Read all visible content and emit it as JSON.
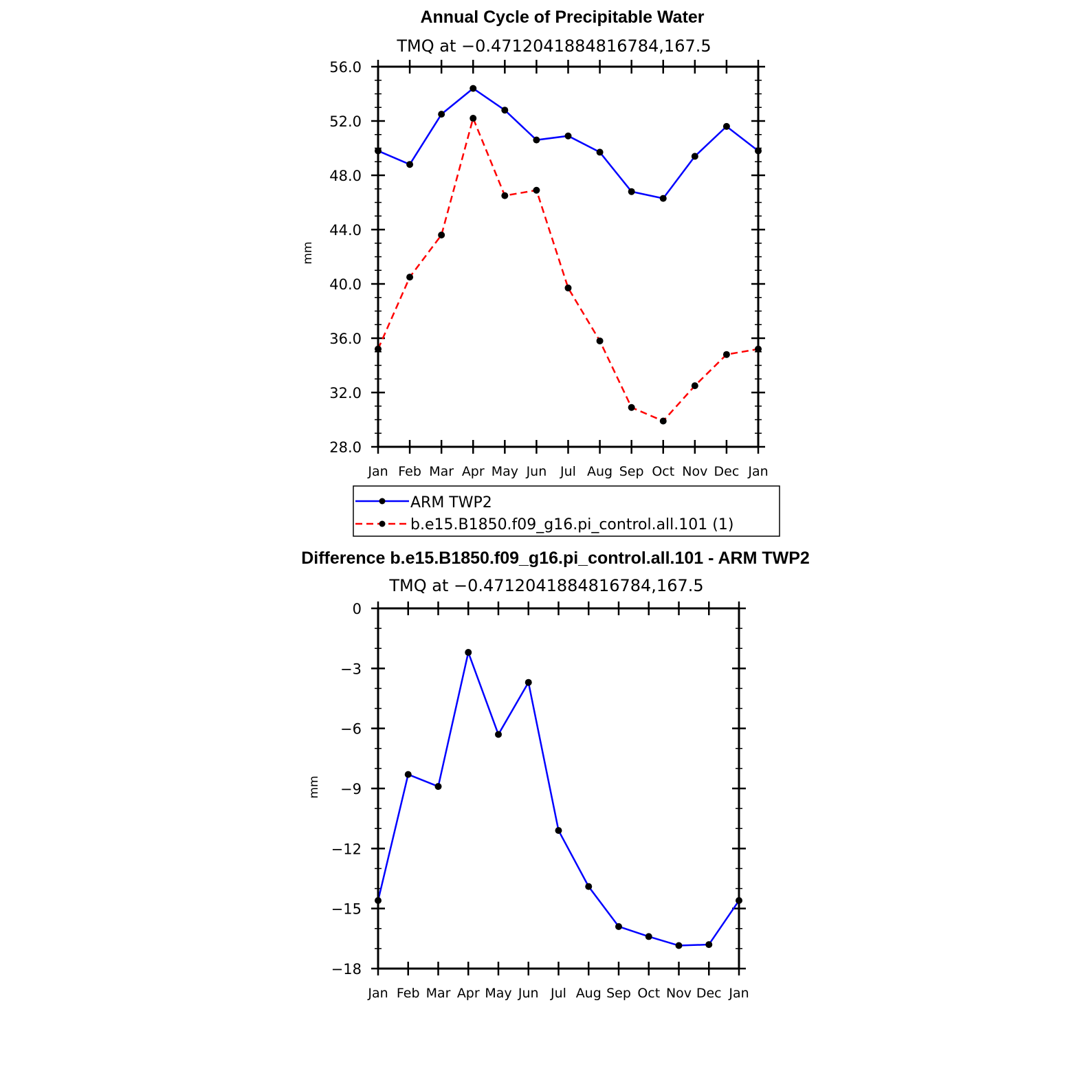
{
  "chart_data": [
    {
      "type": "line",
      "title": "Annual Cycle of Precipitable Water",
      "subtitle": "TMQ at −0.4712041884816784,167.5",
      "ylabel": "mm",
      "xlabel": "",
      "categories": [
        "Jan",
        "Feb",
        "Mar",
        "Apr",
        "May",
        "Jun",
        "Jul",
        "Aug",
        "Sep",
        "Oct",
        "Nov",
        "Dec",
        "Jan"
      ],
      "ylim": [
        28.0,
        56.0
      ],
      "yticks": [
        "28.0",
        "32.0",
        "36.0",
        "40.0",
        "44.0",
        "48.0",
        "52.0",
        "56.0"
      ],
      "ytick_values": [
        28,
        32,
        36,
        40,
        44,
        48,
        52,
        56
      ],
      "series": [
        {
          "name": "ARM TWP2",
          "color": "#0000ff",
          "style": "solid",
          "values": [
            49.8,
            48.8,
            52.5,
            54.4,
            52.8,
            50.6,
            50.9,
            49.7,
            46.8,
            46.3,
            49.4,
            51.6,
            49.8
          ]
        },
        {
          "name": "b.e15.B1850.f09_g16.pi_control.all.101 (1)",
          "color": "#ff0000",
          "style": "dashed",
          "values": [
            35.2,
            40.5,
            43.6,
            52.2,
            46.5,
            46.9,
            39.7,
            35.8,
            30.9,
            29.9,
            32.5,
            34.8,
            35.2
          ]
        }
      ],
      "legend_position": "below"
    },
    {
      "type": "line",
      "title": "Difference b.e15.B1850.f09_g16.pi_control.all.101 - ARM TWP2",
      "subtitle": "TMQ at −0.4712041884816784,167.5",
      "ylabel": "mm",
      "xlabel": "",
      "categories": [
        "Jan",
        "Feb",
        "Mar",
        "Apr",
        "May",
        "Jun",
        "Jul",
        "Aug",
        "Sep",
        "Oct",
        "Nov",
        "Dec",
        "Jan"
      ],
      "ylim": [
        -18,
        0
      ],
      "yticks": [
        "−18",
        "−15",
        "−12",
        "−9",
        "−6",
        "−3",
        "0"
      ],
      "ytick_values": [
        -18,
        -15,
        -12,
        -9,
        -6,
        -3,
        0
      ],
      "series": [
        {
          "name": "Difference",
          "color": "#0000ff",
          "style": "solid",
          "values": [
            -14.6,
            -8.3,
            -8.9,
            -2.2,
            -6.3,
            -3.7,
            -11.1,
            -13.9,
            -15.9,
            -16.4,
            -16.85,
            -16.8,
            -14.6
          ]
        }
      ]
    }
  ]
}
